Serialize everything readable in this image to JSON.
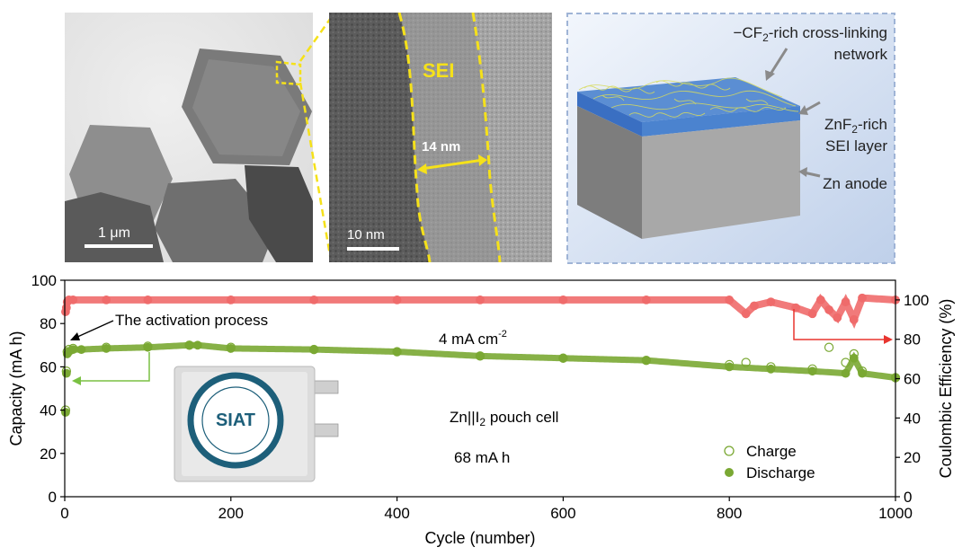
{
  "panels": {
    "tem_low": {
      "scale_bar_label": "1 μm"
    },
    "tem_high": {
      "sei_label": "SEI",
      "thickness_label": "14 nm",
      "scale_bar_label": "10 nm"
    },
    "schematic": {
      "label_network_line1": "−CF",
      "label_network_sub": "2",
      "label_network_rest": "-rich cross-linking",
      "label_network_line2": "network",
      "label_sei_line1": "ZnF",
      "label_sei_sub": "2",
      "label_sei_rest": "-rich",
      "label_sei_line2": "SEI layer",
      "label_anode": "Zn anode"
    }
  },
  "chart_data": {
    "type": "scatter",
    "xlabel": "Cycle (number)",
    "ylabel_left": "Capacity (mA h)",
    "ylabel_right": "Coulombic Efficiency (%)",
    "xlim": [
      0,
      1000
    ],
    "ylim_left": [
      0,
      100
    ],
    "ylim_right": [
      0,
      110
    ],
    "x_ticks": [
      0,
      200,
      400,
      600,
      800,
      1000
    ],
    "y_ticks_left": [
      0,
      20,
      40,
      60,
      80,
      100
    ],
    "y_ticks_right": [
      0,
      20,
      40,
      60,
      80,
      100
    ],
    "annotations": {
      "activation": "The activation process",
      "current_density": "4 mA cm",
      "current_density_sup": "-2",
      "cell_name": "Zn||I",
      "cell_name_sub": "2",
      "cell_name_rest": " pouch cell",
      "cell_capacity": "68 mA h"
    },
    "logo_text": "SIAT",
    "legend": {
      "placement": "bottom-right",
      "entries": [
        "Charge",
        "Discharge"
      ]
    },
    "colors": {
      "discharge": "#7aa833",
      "charge_edge": "#7aa833",
      "ce": "#ef6b6b",
      "left_arrow": "#7ac142",
      "right_arrow": "#e8352f"
    },
    "series": [
      {
        "name": "Discharge",
        "axis": "left",
        "marker": "filled",
        "x": [
          1,
          2,
          3,
          5,
          10,
          20,
          50,
          100,
          150,
          160,
          200,
          300,
          400,
          500,
          600,
          700,
          800,
          850,
          900,
          940,
          950,
          960,
          1000
        ],
        "y": [
          39,
          57,
          66,
          67,
          68,
          68,
          68.5,
          69,
          70,
          70,
          68.5,
          68,
          67,
          65,
          64,
          63,
          60,
          59,
          58,
          57,
          64,
          57,
          55
        ]
      },
      {
        "name": "Charge",
        "axis": "left",
        "marker": "open",
        "x": [
          1,
          2,
          3,
          5,
          10,
          50,
          100,
          150,
          200,
          300,
          400,
          500,
          600,
          700,
          800,
          820,
          850,
          900,
          920,
          940,
          950,
          960,
          1000
        ],
        "y": [
          40,
          58,
          67,
          68,
          68.5,
          69,
          69.5,
          70,
          69,
          68,
          67,
          65,
          64,
          63,
          61,
          62,
          60,
          59,
          69,
          62,
          66,
          58,
          55
        ]
      },
      {
        "name": "Coulombic Efficiency",
        "axis": "right",
        "marker": "filled",
        "x": [
          1,
          2,
          3,
          5,
          10,
          50,
          100,
          200,
          300,
          400,
          500,
          600,
          700,
          800,
          820,
          830,
          850,
          880,
          900,
          910,
          920,
          930,
          940,
          950,
          960,
          1000
        ],
        "y": [
          94,
          96,
          99,
          100,
          100,
          100,
          100,
          100,
          100,
          100,
          100,
          100,
          100,
          100,
          93,
          97,
          99,
          96,
          93,
          100,
          95,
          91,
          99,
          90,
          101,
          100
        ]
      }
    ]
  }
}
